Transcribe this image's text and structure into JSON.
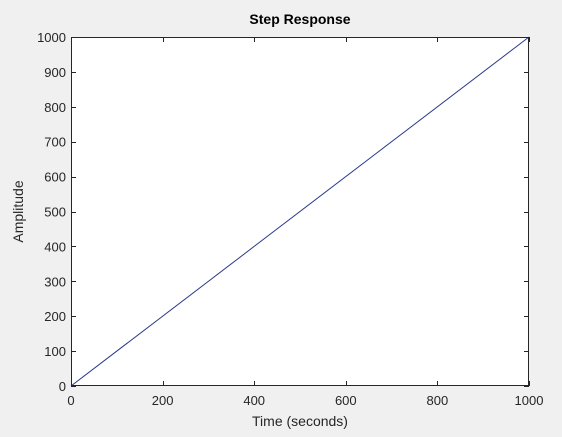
{
  "chart_data": {
    "type": "line",
    "title": "Step Response",
    "xlabel": "Time (seconds)",
    "ylabel": "Amplitude",
    "xlim": [
      0,
      1000
    ],
    "ylim": [
      0,
      1000
    ],
    "xticks": [
      0,
      200,
      400,
      600,
      800,
      1000
    ],
    "yticks": [
      0,
      100,
      200,
      300,
      400,
      500,
      600,
      700,
      800,
      900,
      1000
    ],
    "grid": false,
    "series": [
      {
        "x": [
          0,
          1000
        ],
        "y": [
          0,
          1000
        ],
        "color": "#2b3a8c"
      }
    ]
  },
  "colors": {
    "figure_background": "#f0f0f0",
    "axes_background": "#ffffff",
    "axes_color": "#262626"
  }
}
